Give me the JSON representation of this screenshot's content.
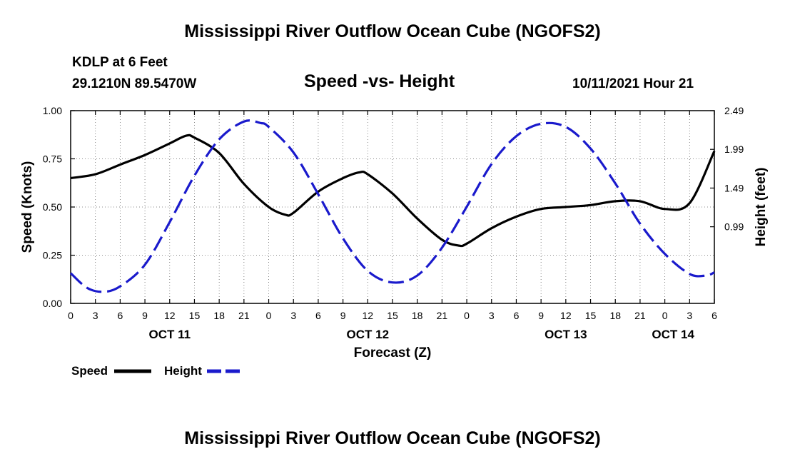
{
  "header": {
    "title": "Mississippi River Outflow Ocean Cube (NGOFS2)",
    "station": "KDLP at 6 Feet",
    "coords": "29.1210N  89.5470W",
    "subtitle": "Speed -vs- Height",
    "datetime": "10/11/2021 Hour 21"
  },
  "footer": {
    "title": "Mississippi River Outflow Ocean Cube (NGOFS2)"
  },
  "legend": {
    "speed_label": "Speed",
    "height_label": "Height",
    "speed_color": "#000000",
    "height_color": "#1a1acc"
  },
  "chart_data": {
    "type": "line",
    "title": "Speed -vs- Height",
    "xlabel": "Forecast (Z)",
    "ylabel": "Speed (Knots)",
    "y2label": "Height (feet)",
    "x_range_hours": [
      0,
      78
    ],
    "ylim": [
      0,
      1.0
    ],
    "y2lim": [
      0,
      2.49
    ],
    "yticks": [
      "0.00",
      "0.25",
      "0.50",
      "0.75",
      "1.00"
    ],
    "y2ticks": [
      "0.99",
      "1.49",
      "1.99",
      "2.49"
    ],
    "y2tick_values": [
      0.99,
      1.49,
      1.99,
      2.49
    ],
    "xtick_labels": [
      "0",
      "3",
      "6",
      "9",
      "12",
      "15",
      "18",
      "21",
      "0",
      "3",
      "6",
      "9",
      "12",
      "15",
      "18",
      "21",
      "0",
      "3",
      "6",
      "9",
      "12",
      "15",
      "18",
      "21",
      "0",
      "3",
      "6"
    ],
    "day_labels": [
      {
        "label": "OCT 11",
        "hour": 12
      },
      {
        "label": "OCT 12",
        "hour": 36
      },
      {
        "label": "OCT 13",
        "hour": 60
      },
      {
        "label": "OCT 14",
        "hour": 73
      }
    ],
    "series": [
      {
        "name": "Speed",
        "axis": "left",
        "style": "solid",
        "color": "#000000",
        "x": [
          0,
          3,
          6,
          9,
          12,
          14,
          15,
          18,
          21,
          24,
          26,
          27,
          30,
          33,
          35,
          36,
          39,
          42,
          45,
          47,
          48,
          51,
          54,
          57,
          60,
          63,
          66,
          69,
          72,
          75,
          78
        ],
        "values": [
          0.65,
          0.67,
          0.72,
          0.77,
          0.83,
          0.87,
          0.86,
          0.78,
          0.62,
          0.5,
          0.46,
          0.47,
          0.58,
          0.65,
          0.68,
          0.67,
          0.57,
          0.44,
          0.33,
          0.3,
          0.31,
          0.39,
          0.45,
          0.49,
          0.5,
          0.51,
          0.53,
          0.53,
          0.49,
          0.52,
          0.79
        ]
      },
      {
        "name": "Height",
        "axis": "right",
        "style": "dashed",
        "color": "#1a1acc",
        "x": [
          0,
          2,
          4,
          6,
          9,
          12,
          15,
          18,
          21,
          23,
          24,
          27,
          30,
          33,
          36,
          39,
          42,
          45,
          48,
          51,
          54,
          57,
          60,
          63,
          66,
          69,
          72,
          75,
          77,
          78
        ],
        "values": [
          0.39,
          0.2,
          0.15,
          0.22,
          0.5,
          1.05,
          1.65,
          2.12,
          2.35,
          2.33,
          2.28,
          1.95,
          1.41,
          0.84,
          0.42,
          0.27,
          0.36,
          0.72,
          1.25,
          1.8,
          2.16,
          2.32,
          2.28,
          2.0,
          1.55,
          1.03,
          0.64,
          0.38,
          0.36,
          0.4
        ]
      }
    ]
  }
}
